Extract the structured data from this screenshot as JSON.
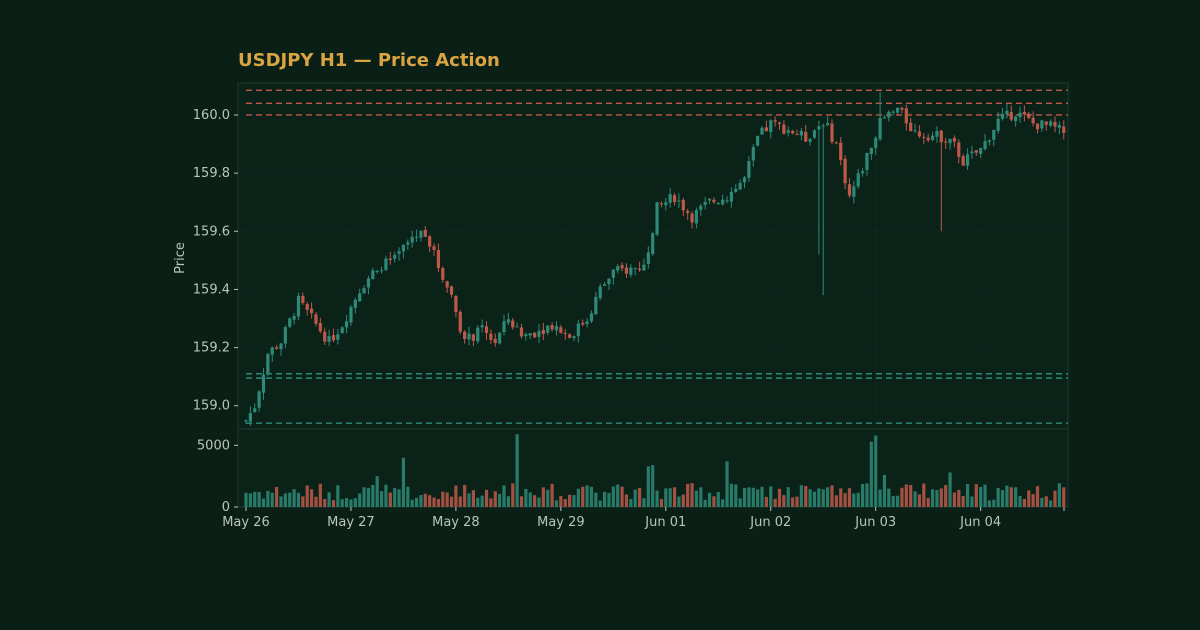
{
  "colors": {
    "background": "#0a1f16",
    "panel": "#0b2219",
    "panel_border": "#1d3a2f",
    "grid": "#16322a",
    "text": "#b8c4bd",
    "title": "#d9a441",
    "bullish": "#2e8a78",
    "bearish": "#c0584a",
    "resistance_line": "#c0584a",
    "support_line": "#2e8a78"
  },
  "chart_data": {
    "type": "candlestick",
    "title": "USDJPY H1 — Price Action",
    "ylabel": "Price",
    "ylim": [
      158.92,
      160.11
    ],
    "yticks": [
      "159.0",
      "159.2",
      "159.4",
      "159.6",
      "159.8",
      "160.0"
    ],
    "volume_ylim": [
      0,
      6000
    ],
    "volume_ticks": [
      "0",
      "5000"
    ],
    "xticks": [
      {
        "label": "May 26",
        "hour": 0
      },
      {
        "label": "May 27",
        "hour": 24
      },
      {
        "label": "May 28",
        "hour": 48
      },
      {
        "label": "May 29",
        "hour": 72
      },
      {
        "label": "Jun 01",
        "hour": 96
      },
      {
        "label": "Jun 02",
        "hour": 120
      },
      {
        "label": "Jun 03",
        "hour": 144
      },
      {
        "label": "Jun 04",
        "hour": 168
      }
    ],
    "resistance_levels": [
      160.0,
      160.04,
      160.085
    ],
    "support_levels": [
      158.94,
      159.095,
      159.11
    ],
    "close_points": [
      [
        0,
        158.95
      ],
      [
        2,
        159.0
      ],
      [
        5,
        159.18
      ],
      [
        8,
        159.22
      ],
      [
        12,
        159.36
      ],
      [
        15,
        159.3
      ],
      [
        19,
        159.22
      ],
      [
        22,
        159.28
      ],
      [
        26,
        159.4
      ],
      [
        30,
        159.48
      ],
      [
        34,
        159.5
      ],
      [
        38,
        159.58
      ],
      [
        41,
        159.6
      ],
      [
        44,
        159.48
      ],
      [
        47,
        159.38
      ],
      [
        50,
        159.22
      ],
      [
        54,
        159.26
      ],
      [
        57,
        159.22
      ],
      [
        60,
        159.3
      ],
      [
        63,
        159.24
      ],
      [
        67,
        159.26
      ],
      [
        70,
        159.28
      ],
      [
        74,
        159.24
      ],
      [
        78,
        159.3
      ],
      [
        81,
        159.4
      ],
      [
        84,
        159.46
      ],
      [
        88,
        159.47
      ],
      [
        91,
        159.48
      ],
      [
        94,
        159.68
      ],
      [
        98,
        159.72
      ],
      [
        102,
        159.65
      ],
      [
        106,
        159.7
      ],
      [
        110,
        159.72
      ],
      [
        114,
        159.78
      ],
      [
        117,
        159.92
      ],
      [
        120,
        159.97
      ],
      [
        124,
        159.95
      ],
      [
        128,
        159.92
      ],
      [
        132,
        159.98
      ],
      [
        135,
        159.9
      ],
      [
        138,
        159.72
      ],
      [
        141,
        159.82
      ],
      [
        145,
        159.98
      ],
      [
        149,
        160.02
      ],
      [
        153,
        159.94
      ],
      [
        157,
        159.93
      ],
      [
        161,
        159.92
      ],
      [
        164,
        159.84
      ],
      [
        168,
        159.88
      ],
      [
        172,
        159.98
      ],
      [
        176,
        160.01
      ],
      [
        180,
        159.97
      ],
      [
        184,
        159.96
      ],
      [
        187,
        159.94
      ]
    ],
    "spikes": [
      {
        "hour": 131,
        "low": 159.52
      },
      {
        "hour": 132,
        "low": 159.38
      },
      {
        "hour": 145,
        "high": 160.08
      },
      {
        "hour": 159,
        "low": 159.6
      }
    ],
    "volume_base": 1300,
    "volume_spikes": [
      {
        "hour": 36,
        "value": 4000
      },
      {
        "hour": 62,
        "value": 5900
      },
      {
        "hour": 92,
        "value": 3300
      },
      {
        "hour": 93,
        "value": 3400
      },
      {
        "hour": 110,
        "value": 3700
      },
      {
        "hour": 143,
        "value": 5300
      },
      {
        "hour": 144,
        "value": 5800
      },
      {
        "hour": 161,
        "value": 2800
      },
      {
        "hour": 30,
        "value": 2500
      },
      {
        "hour": 146,
        "value": 2600
      }
    ],
    "bar_count": 188
  }
}
